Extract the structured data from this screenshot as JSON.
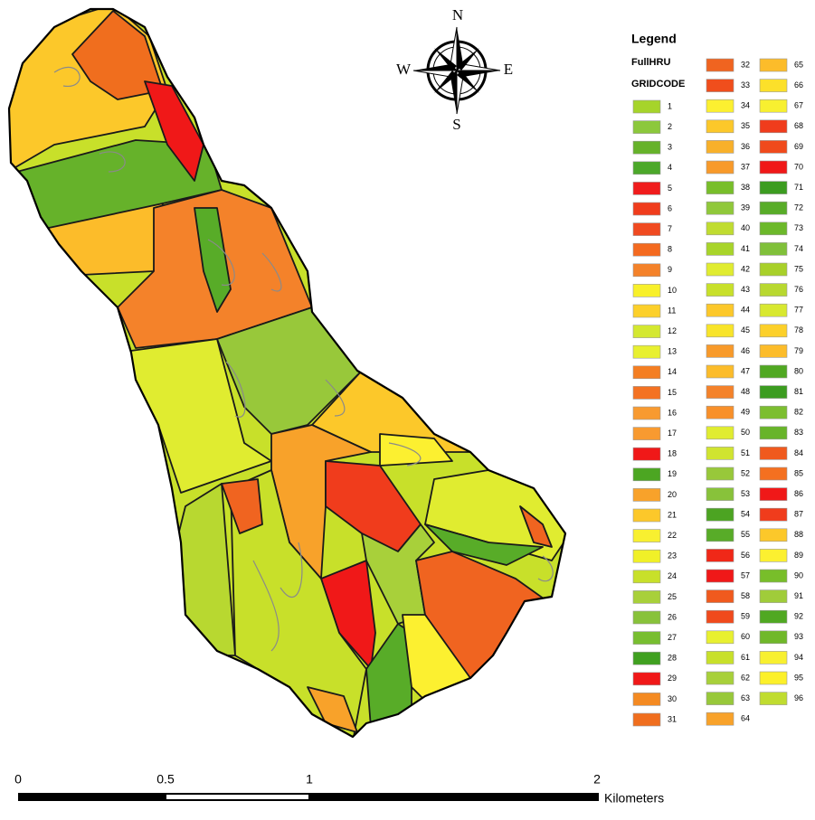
{
  "legend": {
    "title": "Legend",
    "layer": "FullHRU",
    "field": "GRIDCODE",
    "items": [
      {
        "label": "1",
        "color": "#a6d42a"
      },
      {
        "label": "2",
        "color": "#8cc83c"
      },
      {
        "label": "3",
        "color": "#66b22a"
      },
      {
        "label": "4",
        "color": "#4ca82a"
      },
      {
        "label": "5",
        "color": "#f01c1c"
      },
      {
        "label": "6",
        "color": "#f03c1c"
      },
      {
        "label": "7",
        "color": "#f04a20"
      },
      {
        "label": "8",
        "color": "#f46a20"
      },
      {
        "label": "9",
        "color": "#f4822a"
      },
      {
        "label": "10",
        "color": "#f8f02a"
      },
      {
        "label": "11",
        "color": "#fcd02a"
      },
      {
        "label": "12",
        "color": "#d4e830"
      },
      {
        "label": "13",
        "color": "#e8f030"
      },
      {
        "label": "14",
        "color": "#f47e22"
      },
      {
        "label": "15",
        "color": "#f47222"
      },
      {
        "label": "16",
        "color": "#f89a30"
      },
      {
        "label": "17",
        "color": "#f89a30"
      },
      {
        "label": "18",
        "color": "#f01818"
      },
      {
        "label": "19",
        "color": "#4ca622"
      },
      {
        "label": "20",
        "color": "#f8a22a"
      },
      {
        "label": "21",
        "color": "#fcc82a"
      },
      {
        "label": "22",
        "color": "#f8f030"
      },
      {
        "label": "23",
        "color": "#f0f028"
      },
      {
        "label": "24",
        "color": "#c8e02a"
      },
      {
        "label": "25",
        "color": "#a8d03a"
      },
      {
        "label": "26",
        "color": "#88c23a"
      },
      {
        "label": "27",
        "color": "#78be30"
      },
      {
        "label": "28",
        "color": "#40a020"
      },
      {
        "label": "29",
        "color": "#f01818"
      },
      {
        "label": "30",
        "color": "#f48a22"
      },
      {
        "label": "31",
        "color": "#f06e1e"
      },
      {
        "label": "32",
        "color": "#f06420"
      },
      {
        "label": "33",
        "color": "#f04e1c"
      },
      {
        "label": "34",
        "color": "#fcf030"
      },
      {
        "label": "35",
        "color": "#fcc82a"
      },
      {
        "label": "36",
        "color": "#f8b02a"
      },
      {
        "label": "37",
        "color": "#f89a2a"
      },
      {
        "label": "38",
        "color": "#78be2a"
      },
      {
        "label": "39",
        "color": "#90c83a"
      },
      {
        "label": "40",
        "color": "#c0dc30"
      },
      {
        "label": "41",
        "color": "#a8d42a"
      },
      {
        "label": "42",
        "color": "#e0ec30"
      },
      {
        "label": "43",
        "color": "#c8e02a"
      },
      {
        "label": "44",
        "color": "#fcc82a"
      },
      {
        "label": "45",
        "color": "#f8e42a"
      },
      {
        "label": "46",
        "color": "#f89a2a"
      },
      {
        "label": "47",
        "color": "#fcbc2a"
      },
      {
        "label": "48",
        "color": "#f4822a"
      },
      {
        "label": "49",
        "color": "#f8902a"
      },
      {
        "label": "50",
        "color": "#e0ec30"
      },
      {
        "label": "51",
        "color": "#d0e430"
      },
      {
        "label": "52",
        "color": "#98c83a"
      },
      {
        "label": "53",
        "color": "#88c23a"
      },
      {
        "label": "54",
        "color": "#4ca422"
      },
      {
        "label": "55",
        "color": "#58ac28"
      },
      {
        "label": "56",
        "color": "#f02818"
      },
      {
        "label": "57",
        "color": "#f01818"
      },
      {
        "label": "58",
        "color": "#f05a1e"
      },
      {
        "label": "59",
        "color": "#f04a1c"
      },
      {
        "label": "60",
        "color": "#e8f030"
      },
      {
        "label": "61",
        "color": "#c8e02a"
      },
      {
        "label": "62",
        "color": "#a8d03a"
      },
      {
        "label": "63",
        "color": "#98c83a"
      },
      {
        "label": "64",
        "color": "#f8a22a"
      },
      {
        "label": "65",
        "color": "#fcbc2a"
      },
      {
        "label": "66",
        "color": "#fce02a"
      },
      {
        "label": "67",
        "color": "#f8f030"
      },
      {
        "label": "68",
        "color": "#f03c1c"
      },
      {
        "label": "69",
        "color": "#f04a1c"
      },
      {
        "label": "70",
        "color": "#f01818"
      },
      {
        "label": "71",
        "color": "#3c9c20"
      },
      {
        "label": "72",
        "color": "#58ac28"
      },
      {
        "label": "73",
        "color": "#6cb82a"
      },
      {
        "label": "74",
        "color": "#80c03a"
      },
      {
        "label": "75",
        "color": "#a8d02a"
      },
      {
        "label": "76",
        "color": "#b8d830"
      },
      {
        "label": "77",
        "color": "#d8e830"
      },
      {
        "label": "78",
        "color": "#fcd02a"
      },
      {
        "label": "79",
        "color": "#fcbc2a"
      },
      {
        "label": "80",
        "color": "#50a822"
      },
      {
        "label": "81",
        "color": "#3c9c20"
      },
      {
        "label": "82",
        "color": "#7cbe30"
      },
      {
        "label": "83",
        "color": "#68b42a"
      },
      {
        "label": "84",
        "color": "#f05a1e"
      },
      {
        "label": "85",
        "color": "#f47020"
      },
      {
        "label": "86",
        "color": "#f01818"
      },
      {
        "label": "87",
        "color": "#f03c1c"
      },
      {
        "label": "88",
        "color": "#fcc82a"
      },
      {
        "label": "89",
        "color": "#fcf030"
      },
      {
        "label": "90",
        "color": "#78be2a"
      },
      {
        "label": "91",
        "color": "#a0cc3a"
      },
      {
        "label": "92",
        "color": "#50a822"
      },
      {
        "label": "93",
        "color": "#70b82a"
      },
      {
        "label": "94",
        "color": "#f8f030"
      },
      {
        "label": "95",
        "color": "#fcf02a"
      },
      {
        "label": "96",
        "color": "#c0dc30"
      }
    ]
  },
  "compass": {
    "north": "N",
    "east": "E",
    "south": "S",
    "west": "W"
  },
  "scale_bar": {
    "labels": [
      "0",
      "0.5",
      "1",
      "2"
    ],
    "unit": "Kilometers"
  }
}
